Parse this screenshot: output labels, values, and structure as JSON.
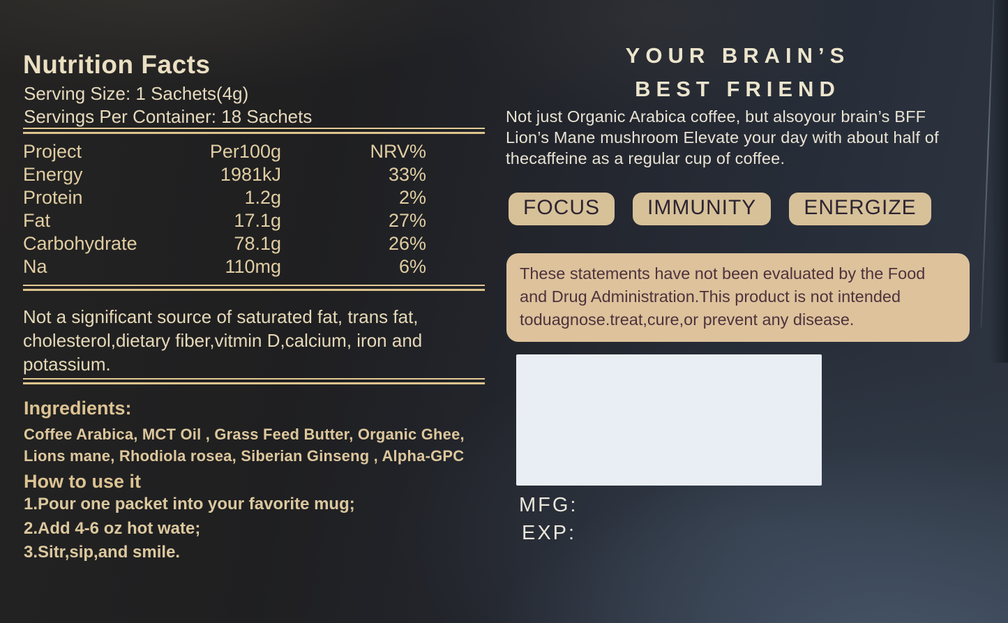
{
  "nutrition": {
    "title": "Nutrition Facts",
    "serving_size": "Serving Size: 1 Sachets(4g)",
    "servings_per_container": "Servings Per Container: 18 Sachets",
    "table": {
      "headers": [
        "Project",
        "Per100g",
        "NRV%"
      ],
      "rows": [
        {
          "name": "Energy",
          "per100g": "1981kJ",
          "nrv": "33%"
        },
        {
          "name": "Protein",
          "per100g": "1.2g",
          "nrv": "2%"
        },
        {
          "name": "Fat",
          "per100g": "17.1g",
          "nrv": "27%"
        },
        {
          "name": "Carbohydrate",
          "per100g": "78.1g",
          "nrv": "26%"
        },
        {
          "name": "Na",
          "per100g": "110mg",
          "nrv": "6%"
        }
      ]
    },
    "note": "Not a significant source of saturated fat, trans fat, cholesterol,dietary fiber,vitmin D,calcium, iron and potassium.",
    "ingredients_label": "Ingredients:",
    "ingredients": "Coffee Arabica, MCT Oil , Grass Feed Butter, Organic Ghee, Lions mane, Rhodiola rosea, Siberian Ginseng , Alpha-GPC",
    "how_to_use_label": "How to use it",
    "steps": [
      "1.Pour one packet into your favorite mug;",
      "2.Add 4-6 oz hot wate;",
      "3.Sitr,sip,and smile."
    ]
  },
  "marketing": {
    "heading_line1": "YOUR BRAIN’S",
    "heading_line2": "BEST FRIEND",
    "body": "Not just Organic Arabica coffee, but alsoyour brain’s BFF Lion’s Mane mushroom Elevate your day with about half of thecaffeine as a regular cup of coffee.",
    "badges": [
      "FOCUS",
      "IMMUNITY",
      "ENERGIZE"
    ],
    "disclaimer": "These statements have not been evaluated by the Food and Drug Administration.This product is not intended toduagnose.treat,cure,or prevent any disease.",
    "mfg_label": "MFG:",
    "exp_label": "EXP:"
  },
  "colors": {
    "gold_text": "#e0cda2",
    "cream_text": "#ece5cd",
    "badge_fill": "#d7c199",
    "disclaimer_fill": "#ddc29c",
    "disclaimer_text": "#4e333c",
    "sticker_white": "#e9edf4",
    "background_dark": "#1f1f21",
    "background_slate": "#2e3642"
  }
}
